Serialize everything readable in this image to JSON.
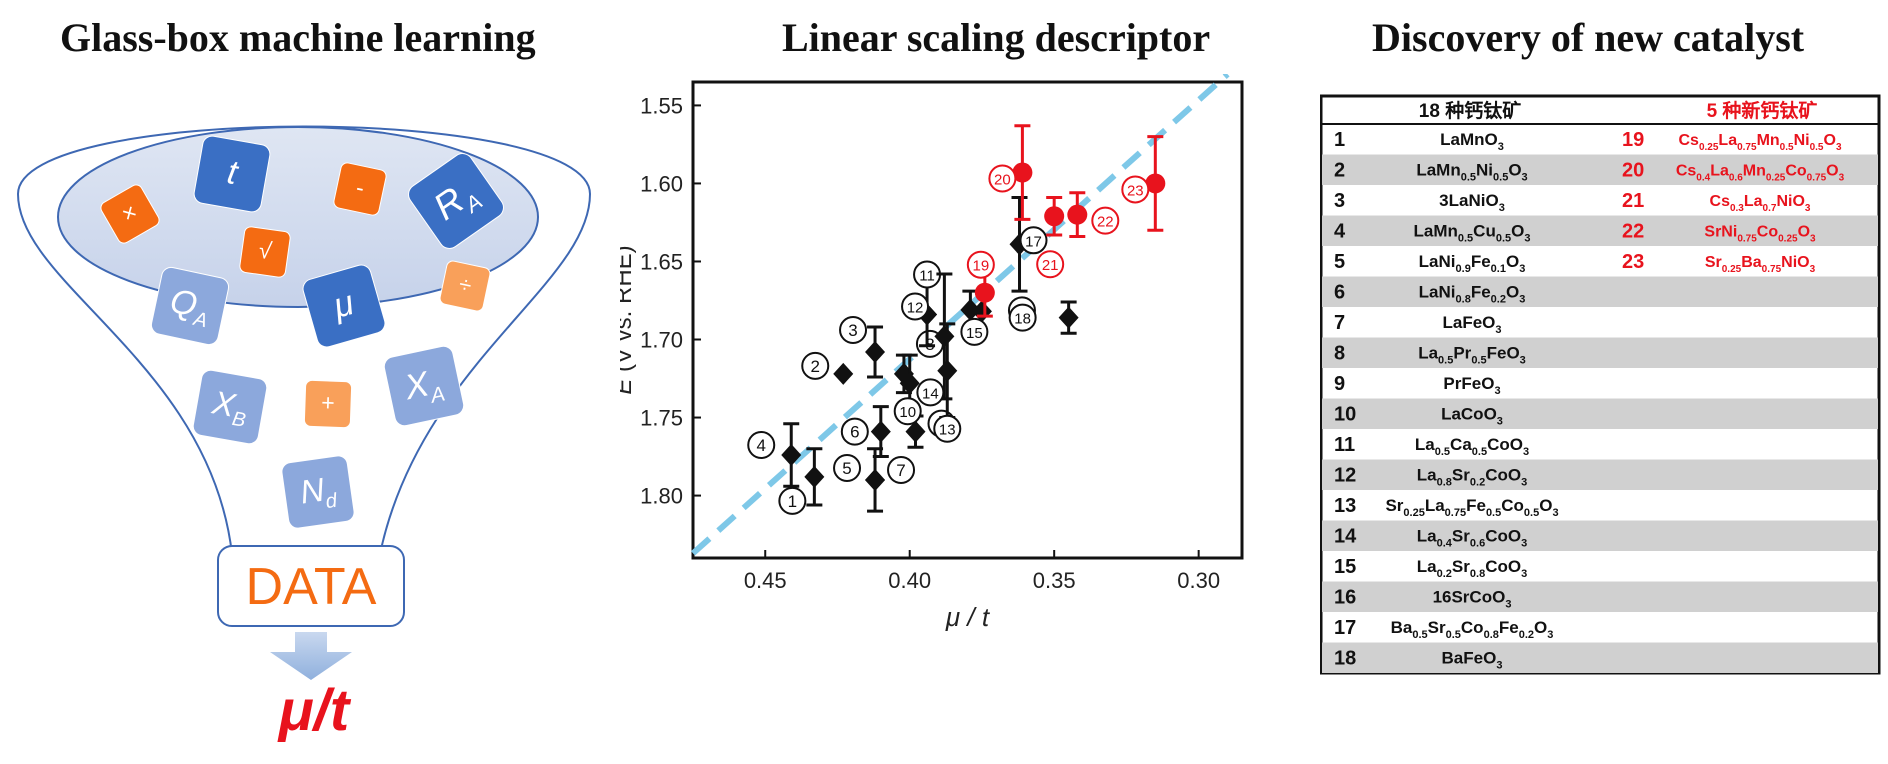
{
  "titles": {
    "left": "Glass-box machine learning",
    "middle": "Linear scaling descriptor",
    "right": "Discovery of new catalyst"
  },
  "funnel": {
    "tiles": [
      {
        "label": "×",
        "style": "orange",
        "icon": "multiply-icon"
      },
      {
        "label": "t",
        "style": "blue",
        "icon": "t-tile"
      },
      {
        "label": "-",
        "style": "orange",
        "icon": "minus-icon"
      },
      {
        "label": "R",
        "sub": "A",
        "style": "blue",
        "icon": "ra-tile"
      },
      {
        "label": "√",
        "style": "orange",
        "icon": "sqrt-icon"
      },
      {
        "label": "Q",
        "sub": "A",
        "style": "lightblue",
        "icon": "qa-tile"
      },
      {
        "label": "μ",
        "style": "blue",
        "icon": "mu-tile"
      },
      {
        "label": "÷",
        "style": "lightorange",
        "icon": "divide-icon"
      },
      {
        "label": "X",
        "sub": "B",
        "style": "lightblue",
        "icon": "xb-tile"
      },
      {
        "label": "+",
        "style": "lightorange",
        "icon": "plus-icon"
      },
      {
        "label": "X",
        "sub": "A",
        "style": "lightblue",
        "icon": "xa-tile"
      },
      {
        "label": "N",
        "sub": "d",
        "style": "lightblue",
        "icon": "nd-tile"
      }
    ],
    "data_label": "DATA",
    "output_label": "μ/t"
  },
  "colors": {
    "orange": "#f46b12",
    "blue": "#3a6fc4",
    "lightblue": "#8ca8dc",
    "lightorange": "#f9a05a",
    "red": "#e8131d",
    "fitline": "#7ec8e8",
    "black": "#111111"
  },
  "chart_data": {
    "type": "scatter",
    "xlabel": "μ / t",
    "ylabel": "E (V vs. RHE)",
    "xlim": [
      0.475,
      0.285
    ],
    "ylim": [
      1.84,
      1.535
    ],
    "xticks": [
      "0.45",
      "0.40",
      "0.35",
      "0.30"
    ],
    "yticks": [
      "1.55",
      "1.60",
      "1.65",
      "1.70",
      "1.75",
      "1.80"
    ],
    "fit_line": {
      "x": [
        0.475,
        0.29
      ],
      "y": [
        1.837,
        1.53
      ]
    },
    "series": [
      {
        "marker": "diamond",
        "color": "#111111",
        "points": [
          {
            "id": "1",
            "x": 0.433,
            "y": 1.788,
            "err": 0.018
          },
          {
            "id": "2",
            "x": 0.423,
            "y": 1.722,
            "err": 0
          },
          {
            "id": "3",
            "x": 0.412,
            "y": 1.708,
            "err": 0.016
          },
          {
            "id": "4",
            "x": 0.441,
            "y": 1.774,
            "err": 0.02
          },
          {
            "id": "5",
            "x": 0.412,
            "y": 1.79,
            "err": 0.02
          },
          {
            "id": "6",
            "x": 0.41,
            "y": 1.759,
            "err": 0.016
          },
          {
            "id": "7",
            "x": 0.412,
            "y": 1.79,
            "err": 0
          },
          {
            "id": "8",
            "x": 0.402,
            "y": 1.722,
            "err": 0.012
          },
          {
            "id": "9",
            "x": 0.398,
            "y": 1.759,
            "err": 0.01
          },
          {
            "id": "10",
            "x": 0.4,
            "y": 1.728,
            "err": 0.018
          },
          {
            "id": "11",
            "x": 0.394,
            "y": 1.684,
            "err": 0.02
          },
          {
            "id": "12",
            "x": 0.394,
            "y": 1.684,
            "err": 0
          },
          {
            "id": "13",
            "x": 0.387,
            "y": 1.72,
            "err": 0.03
          },
          {
            "id": "14",
            "x": 0.388,
            "y": 1.698,
            "err": 0.04
          },
          {
            "id": "15",
            "x": 0.379,
            "y": 1.681,
            "err": 0.012
          },
          {
            "id": "16",
            "x": 0.375,
            "y": 1.682,
            "err": 0
          },
          {
            "id": "17",
            "x": 0.362,
            "y": 1.639,
            "err": 0.03
          },
          {
            "id": "18",
            "x": 0.345,
            "y": 1.686,
            "err": 0.01
          }
        ]
      },
      {
        "marker": "circle",
        "color": "#e8131d",
        "points": [
          {
            "id": "19",
            "x": 0.374,
            "y": 1.67,
            "err": 0.015
          },
          {
            "id": "20",
            "x": 0.361,
            "y": 1.593,
            "err": 0.03
          },
          {
            "id": "21",
            "x": 0.35,
            "y": 1.621,
            "err": 0.012
          },
          {
            "id": "22",
            "x": 0.342,
            "y": 1.62,
            "err": 0.014
          },
          {
            "id": "23",
            "x": 0.315,
            "y": 1.6,
            "err": 0.03
          }
        ]
      }
    ],
    "label_offsets": {}
  },
  "table": {
    "header": {
      "left": "18 种钙钛矿",
      "right": "5 种新钙钛矿"
    },
    "rows": [
      {
        "n": "1",
        "f": [
          [
            "LaMnO",
            ""
          ],
          [
            "3",
            "s"
          ]
        ],
        "n2": "19",
        "f2": [
          [
            "Cs",
            ""
          ],
          [
            "0.25",
            "s"
          ],
          [
            "La",
            ""
          ],
          [
            "0.75",
            "s"
          ],
          [
            "Mn",
            ""
          ],
          [
            "0.5",
            "s"
          ],
          [
            "Ni",
            ""
          ],
          [
            "0.5",
            "s"
          ],
          [
            "O",
            ""
          ],
          [
            "3",
            "s"
          ]
        ]
      },
      {
        "n": "2",
        "f": [
          [
            "LaMn",
            ""
          ],
          [
            "0.5",
            "s"
          ],
          [
            "Ni",
            ""
          ],
          [
            "0.5",
            "s"
          ],
          [
            "O",
            ""
          ],
          [
            "3",
            "s"
          ]
        ],
        "n2": "20",
        "f2": [
          [
            "Cs",
            ""
          ],
          [
            "0.4",
            "s"
          ],
          [
            "La",
            ""
          ],
          [
            "0.6",
            "s"
          ],
          [
            "Mn",
            ""
          ],
          [
            "0.25",
            "s"
          ],
          [
            "Co",
            ""
          ],
          [
            "0.75",
            "s"
          ],
          [
            "O",
            ""
          ],
          [
            "3",
            "s"
          ]
        ]
      },
      {
        "n": "3",
        "f": [
          [
            "3LaNiO",
            ""
          ],
          [
            "3",
            "s"
          ]
        ],
        "n2": "21",
        "f2": [
          [
            "Cs",
            ""
          ],
          [
            "0.3",
            "s"
          ],
          [
            "La",
            ""
          ],
          [
            "0.7",
            "s"
          ],
          [
            "NiO",
            ""
          ],
          [
            "3",
            "s"
          ]
        ]
      },
      {
        "n": "4",
        "f": [
          [
            "LaMn",
            ""
          ],
          [
            "0.5",
            "s"
          ],
          [
            "Cu",
            ""
          ],
          [
            "0.5",
            "s"
          ],
          [
            "O",
            ""
          ],
          [
            "3",
            "s"
          ]
        ],
        "n2": "22",
        "f2": [
          [
            "SrNi",
            ""
          ],
          [
            "0.75",
            "s"
          ],
          [
            "Co",
            ""
          ],
          [
            "0.25",
            "s"
          ],
          [
            "O",
            ""
          ],
          [
            "3",
            "s"
          ]
        ]
      },
      {
        "n": "5",
        "f": [
          [
            "LaNi",
            ""
          ],
          [
            "0.9",
            "s"
          ],
          [
            "Fe",
            ""
          ],
          [
            "0.1",
            "s"
          ],
          [
            "O",
            ""
          ],
          [
            "3",
            "s"
          ]
        ],
        "n2": "23",
        "f2": [
          [
            "Sr",
            ""
          ],
          [
            "0.25",
            "s"
          ],
          [
            "Ba",
            ""
          ],
          [
            "0.75",
            "s"
          ],
          [
            "NiO",
            ""
          ],
          [
            "3",
            "s"
          ]
        ]
      },
      {
        "n": "6",
        "f": [
          [
            "LaNi",
            ""
          ],
          [
            "0.8",
            "s"
          ],
          [
            "Fe",
            ""
          ],
          [
            "0.2",
            "s"
          ],
          [
            "O",
            ""
          ],
          [
            "3",
            "s"
          ]
        ]
      },
      {
        "n": "7",
        "f": [
          [
            "LaFeO",
            ""
          ],
          [
            "3",
            "s"
          ]
        ]
      },
      {
        "n": "8",
        "f": [
          [
            "La",
            ""
          ],
          [
            "0.5",
            "s"
          ],
          [
            "Pr",
            ""
          ],
          [
            "0.5",
            "s"
          ],
          [
            "FeO",
            ""
          ],
          [
            "3",
            "s"
          ]
        ]
      },
      {
        "n": "9",
        "f": [
          [
            "PrFeO",
            ""
          ],
          [
            "3",
            "s"
          ]
        ]
      },
      {
        "n": "10",
        "f": [
          [
            "LaCoO",
            ""
          ],
          [
            "3",
            "s"
          ]
        ]
      },
      {
        "n": "11",
        "f": [
          [
            "La",
            ""
          ],
          [
            "0.5",
            "s"
          ],
          [
            "Ca",
            ""
          ],
          [
            "0.5",
            "s"
          ],
          [
            "CoO",
            ""
          ],
          [
            "3",
            "s"
          ]
        ]
      },
      {
        "n": "12",
        "f": [
          [
            "La",
            ""
          ],
          [
            "0.8",
            "s"
          ],
          [
            "Sr",
            ""
          ],
          [
            "0.2",
            "s"
          ],
          [
            "CoO",
            ""
          ],
          [
            "3",
            "s"
          ]
        ]
      },
      {
        "n": "13",
        "f": [
          [
            "Sr",
            ""
          ],
          [
            "0.25",
            "s"
          ],
          [
            "La",
            ""
          ],
          [
            "0.75",
            "s"
          ],
          [
            "Fe",
            ""
          ],
          [
            "0.5",
            "s"
          ],
          [
            "Co",
            ""
          ],
          [
            "0.5",
            "s"
          ],
          [
            "O",
            ""
          ],
          [
            "3",
            "s"
          ]
        ]
      },
      {
        "n": "14",
        "f": [
          [
            "La",
            ""
          ],
          [
            "0.4",
            "s"
          ],
          [
            "Sr",
            ""
          ],
          [
            "0.6",
            "s"
          ],
          [
            "CoO",
            ""
          ],
          [
            "3",
            "s"
          ]
        ]
      },
      {
        "n": "15",
        "f": [
          [
            "La",
            ""
          ],
          [
            "0.2",
            "s"
          ],
          [
            "Sr",
            ""
          ],
          [
            "0.8",
            "s"
          ],
          [
            "CoO",
            ""
          ],
          [
            "3",
            "s"
          ]
        ]
      },
      {
        "n": "16",
        "f": [
          [
            "16SrCoO",
            ""
          ],
          [
            "3",
            "s"
          ]
        ]
      },
      {
        "n": "17",
        "f": [
          [
            "Ba",
            ""
          ],
          [
            "0.5",
            "s"
          ],
          [
            "Sr",
            ""
          ],
          [
            "0.5",
            "s"
          ],
          [
            "Co",
            ""
          ],
          [
            "0.8",
            "s"
          ],
          [
            "Fe",
            ""
          ],
          [
            "0.2",
            "s"
          ],
          [
            "O",
            ""
          ],
          [
            "3",
            "s"
          ]
        ]
      },
      {
        "n": "18",
        "f": [
          [
            "BaFeO",
            ""
          ],
          [
            "3",
            "s"
          ]
        ]
      }
    ]
  }
}
